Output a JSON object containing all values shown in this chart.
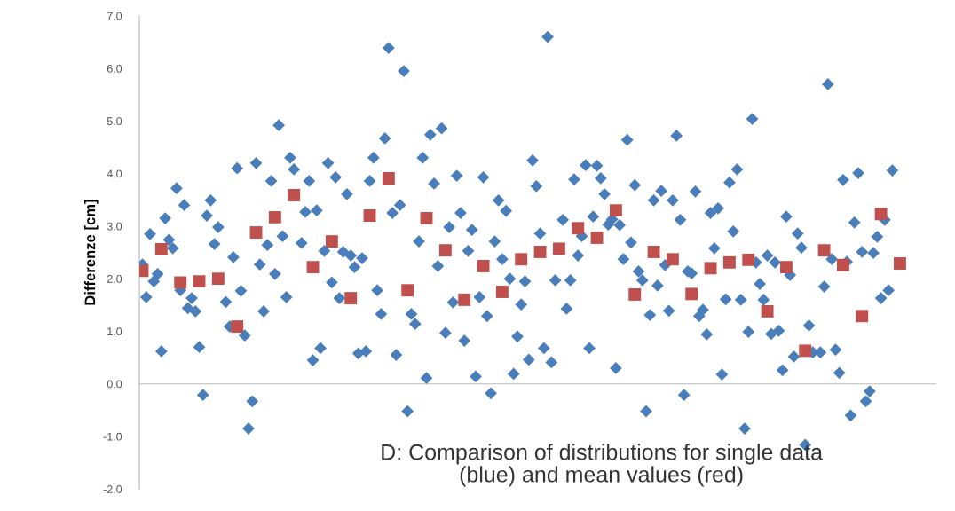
{
  "chart_data": {
    "type": "scatter",
    "ylabel": "Differenze [cm]",
    "annotations": [
      "D: Comparison of distributions for single data\n(blue) and mean values (red)"
    ],
    "ylim": [
      -2,
      7
    ],
    "yticks": [
      {
        "value": -2,
        "label": "-2.0"
      },
      {
        "value": -1,
        "label": "-1.0"
      },
      {
        "value": 0,
        "label": "0.0"
      },
      {
        "value": 1,
        "label": "1.0"
      },
      {
        "value": 2,
        "label": "2.0"
      },
      {
        "value": 3,
        "label": "3.0"
      },
      {
        "value": 4,
        "label": "4.0"
      },
      {
        "value": 5,
        "label": "5.0"
      },
      {
        "value": 6,
        "label": "6.0"
      },
      {
        "value": 7,
        "label": "7.0"
      }
    ],
    "legend": false,
    "categories": [
      null,
      null,
      null,
      null,
      null,
      null,
      null,
      null,
      null,
      null,
      null,
      null,
      null,
      null,
      null,
      null,
      null,
      null,
      null,
      null,
      null,
      null,
      null,
      null,
      null,
      null,
      null,
      null,
      null,
      null,
      null,
      null,
      null,
      null,
      null,
      null,
      null,
      null,
      null,
      null,
      null,
      null,
      null,
      null,
      null,
      null,
      null,
      null,
      null,
      null,
      null,
      null,
      null,
      null,
      null,
      null,
      null,
      null,
      null,
      null,
      null,
      null,
      null,
      null,
      null,
      null,
      null,
      null,
      null,
      null,
      null,
      null,
      null,
      null,
      null,
      null,
      null,
      null,
      null,
      null,
      null,
      null,
      null,
      null,
      null,
      null,
      null,
      null,
      null,
      null,
      null,
      null,
      null,
      null,
      null,
      null,
      null,
      null,
      null,
      null,
      null,
      null,
      null,
      null,
      null,
      null,
      null,
      null,
      null,
      null,
      null,
      null,
      null,
      null,
      null,
      null,
      null,
      null,
      null,
      null,
      null,
      null,
      null,
      null,
      null,
      null,
      null,
      null,
      null,
      null,
      null,
      null,
      null,
      null,
      null,
      null,
      null,
      null,
      null,
      null,
      null,
      null,
      null,
      null,
      null,
      null,
      null,
      null,
      null,
      null,
      null,
      null,
      null,
      null,
      null,
      null,
      null,
      null,
      null,
      null,
      null,
      null,
      null,
      null,
      null,
      null,
      null,
      null,
      null,
      null,
      null,
      null,
      null,
      null,
      null,
      null,
      null,
      null,
      null,
      null,
      null,
      null,
      null,
      null,
      null,
      null,
      null,
      null,
      null,
      null,
      null,
      null,
      null,
      null,
      null,
      null,
      null,
      null,
      null,
      null,
      null,
      null,
      null,
      null,
      null,
      null,
      null,
      null,
      null,
      null
    ],
    "series": [
      {
        "marker": "diamond",
        "color": "#4a7ebb",
        "values": [
          2.27,
          1.65,
          2.85,
          1.95,
          2.09,
          0.62,
          3.15,
          2.74,
          2.58,
          3.72,
          1.78,
          3.4,
          1.44,
          1.63,
          1.38,
          0.7,
          -0.21,
          3.2,
          3.49,
          2.66,
          2.98,
          null,
          1.56,
          1.09,
          2.41,
          4.1,
          1.77,
          0.92,
          -0.85,
          -0.33,
          4.2,
          2.27,
          1.38,
          2.64,
          3.86,
          2.09,
          4.92,
          2.81,
          1.65,
          4.3,
          4.08,
          null,
          2.68,
          3.27,
          3.86,
          0.45,
          3.3,
          0.68,
          2.53,
          4.2,
          1.93,
          3.93,
          1.63,
          2.51,
          3.61,
          2.44,
          2.22,
          0.58,
          2.39,
          0.62,
          3.86,
          4.3,
          1.78,
          1.33,
          4.67,
          6.39,
          3.25,
          0.55,
          3.4,
          5.95,
          -0.52,
          1.33,
          1.14,
          2.71,
          4.3,
          0.11,
          4.74,
          3.81,
          2.24,
          4.86,
          0.97,
          2.98,
          1.55,
          3.96,
          3.25,
          0.82,
          2.53,
          2.93,
          0.14,
          1.65,
          3.93,
          1.29,
          -0.18,
          2.71,
          3.49,
          2.37,
          3.29,
          2.0,
          0.19,
          0.9,
          1.51,
          1.95,
          0.46,
          4.25,
          3.76,
          2.86,
          0.68,
          6.6,
          0.41,
          1.97,
          null,
          3.12,
          1.43,
          1.97,
          3.89,
          2.44,
          2.81,
          4.16,
          0.68,
          3.18,
          4.15,
          3.91,
          3.61,
          3.03,
          3.13,
          0.3,
          3.02,
          2.37,
          4.64,
          2.69,
          3.78,
          2.14,
          1.97,
          -0.52,
          1.31,
          3.49,
          1.87,
          3.67,
          2.26,
          1.39,
          3.49,
          4.72,
          3.12,
          -0.21,
          2.14,
          2.1,
          3.66,
          1.29,
          1.41,
          0.94,
          3.25,
          2.58,
          3.34,
          0.18,
          1.61,
          3.83,
          2.9,
          4.08,
          1.6,
          -0.85,
          0.99,
          5.04,
          2.31,
          1.9,
          1.6,
          2.44,
          0.95,
          2.31,
          1.01,
          0.26,
          3.18,
          2.07,
          0.52,
          2.86,
          2.59,
          -1.16,
          1.11,
          0.6,
          null,
          0.6,
          1.85,
          5.7,
          2.37,
          0.65,
          0.21,
          3.88,
          2.32,
          -0.6,
          3.07,
          4.01,
          2.51,
          -0.33,
          -0.14,
          2.49,
          2.8,
          1.63,
          3.12,
          1.78,
          4.06,
          null,
          null,
          null,
          null,
          null,
          null,
          null,
          null,
          null,
          null,
          null
        ]
      },
      {
        "marker": "square",
        "color": "#c0504d",
        "values": [
          2.15,
          null,
          null,
          null,
          null,
          2.56,
          null,
          null,
          null,
          null,
          1.93,
          null,
          null,
          null,
          null,
          1.95,
          null,
          null,
          null,
          null,
          2.0,
          null,
          null,
          null,
          null,
          1.09,
          null,
          null,
          null,
          null,
          2.88,
          null,
          null,
          null,
          null,
          3.17,
          null,
          null,
          null,
          null,
          3.59,
          null,
          null,
          null,
          null,
          2.22,
          null,
          null,
          null,
          null,
          2.71,
          null,
          null,
          null,
          null,
          1.63,
          null,
          null,
          null,
          null,
          3.2,
          null,
          null,
          null,
          null,
          3.91,
          null,
          null,
          null,
          null,
          1.78,
          null,
          null,
          null,
          null,
          3.15,
          null,
          null,
          null,
          null,
          2.54,
          null,
          null,
          null,
          null,
          1.6,
          null,
          null,
          null,
          null,
          2.24,
          null,
          null,
          null,
          null,
          1.75,
          null,
          null,
          null,
          null,
          2.37,
          null,
          null,
          null,
          null,
          2.51,
          null,
          null,
          null,
          null,
          2.57,
          null,
          null,
          null,
          null,
          2.96,
          null,
          null,
          null,
          null,
          2.78,
          null,
          null,
          null,
          null,
          3.3,
          null,
          null,
          null,
          null,
          1.7,
          null,
          null,
          null,
          null,
          2.51,
          null,
          null,
          null,
          null,
          2.37,
          null,
          null,
          null,
          null,
          1.71,
          null,
          null,
          null,
          null,
          2.2,
          null,
          null,
          null,
          null,
          2.31,
          null,
          null,
          null,
          null,
          2.36,
          null,
          null,
          null,
          null,
          1.38,
          null,
          null,
          null,
          null,
          2.22,
          null,
          null,
          null,
          null,
          0.63,
          null,
          null,
          null,
          null,
          2.54,
          null,
          null,
          null,
          null,
          2.26,
          null,
          null,
          null,
          null,
          1.29,
          null,
          null,
          null,
          null,
          3.23,
          null,
          null,
          null,
          null,
          2.29,
          null,
          null,
          null,
          null,
          null,
          null,
          null,
          null,
          null
        ]
      }
    ]
  }
}
